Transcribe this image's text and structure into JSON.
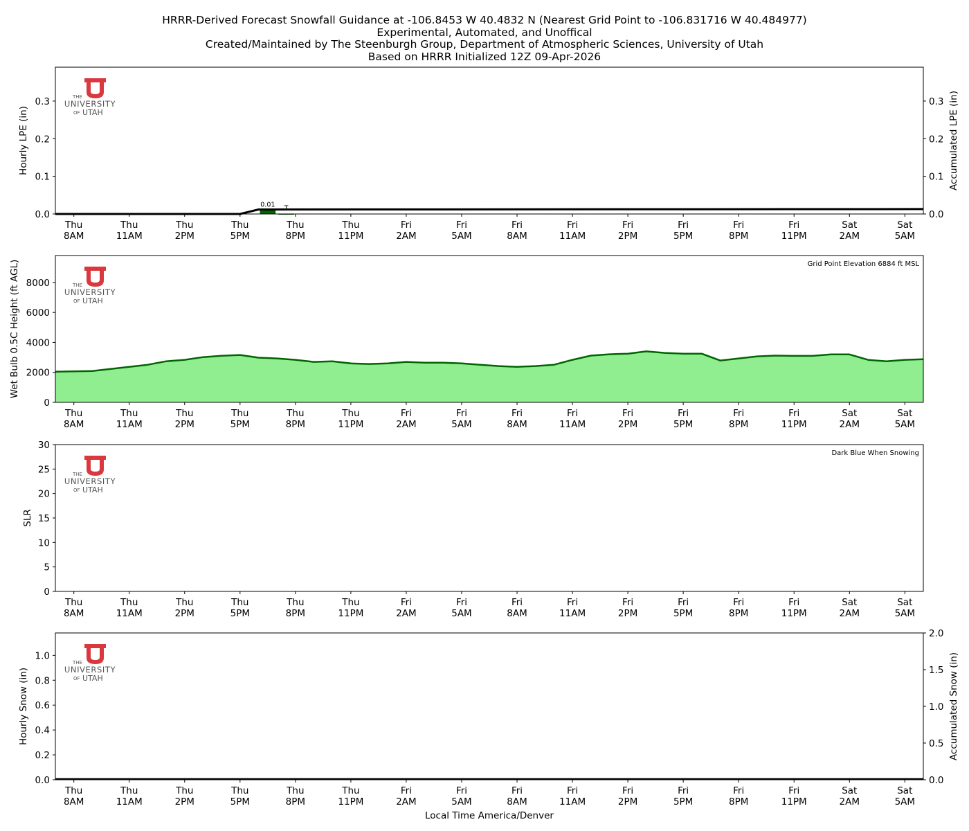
{
  "title": {
    "line1": "HRRR-Derived Forecast Snowfall Guidance at -106.8453 W 40.4832 N (Nearest Grid Point to -106.831716 W 40.484977)",
    "line2": "Experimental, Automated, and Unoffical",
    "line3": "Created/Maintained by The Steenburgh Group, Department of Atmospheric Sciences, University of Utah",
    "line4": "Based on HRRR Initialized 12Z 09-Apr-2026"
  },
  "logo": {
    "the": "THE",
    "university": "UNIVERSITY",
    "of": "OF",
    "utah": "UTAH",
    "color": "#d9383f"
  },
  "xaxis": {
    "label": "Local Time America/Denver",
    "ticks": [
      {
        "day": "Thu",
        "time": "8AM"
      },
      {
        "day": "Thu",
        "time": "11AM"
      },
      {
        "day": "Thu",
        "time": "2PM"
      },
      {
        "day": "Thu",
        "time": "5PM"
      },
      {
        "day": "Thu",
        "time": "8PM"
      },
      {
        "day": "Thu",
        "time": "11PM"
      },
      {
        "day": "Fri",
        "time": "2AM"
      },
      {
        "day": "Fri",
        "time": "5AM"
      },
      {
        "day": "Fri",
        "time": "8AM"
      },
      {
        "day": "Fri",
        "time": "11AM"
      },
      {
        "day": "Fri",
        "time": "2PM"
      },
      {
        "day": "Fri",
        "time": "5PM"
      },
      {
        "day": "Fri",
        "time": "8PM"
      },
      {
        "day": "Fri",
        "time": "11PM"
      },
      {
        "day": "Sat",
        "time": "2AM"
      },
      {
        "day": "Sat",
        "time": "5AM"
      }
    ]
  },
  "colors": {
    "lpe_bar": "#006400",
    "wetbulb_fill": "#90ee90",
    "wetbulb_line": "#006400",
    "axis": "#000000"
  },
  "chart_data": [
    {
      "type": "bar",
      "name": "lpe",
      "title": "",
      "ylabel": "Hourly LPE (in)",
      "y2label": "Accumulated LPE (in)",
      "ylim": [
        0,
        0.39
      ],
      "y2lim": [
        0,
        0.39
      ],
      "yticks": [
        "0.0",
        "0.1",
        "0.2",
        "0.3"
      ],
      "y2ticks": [
        "0.0",
        "0.1",
        "0.2",
        "0.3"
      ],
      "x_start_hour_offset": 0,
      "hours": 47,
      "start": "Thu 7AM",
      "hourly_lpe": [
        {
          "hour_index": 11,
          "label": "Thu 6PM-7PM",
          "value": 0.01,
          "annotation": "0.01"
        },
        {
          "hour_index": 12,
          "label": "Thu 7PM-8PM",
          "value": 0.001,
          "annotation": "T"
        }
      ],
      "accumulated_lpe": {
        "x_hours": [
          0,
          10,
          11,
          47
        ],
        "values": [
          0.0,
          0.0,
          0.012,
          0.013
        ]
      },
      "grid": false
    },
    {
      "type": "area",
      "name": "wetbulb",
      "ylabel": "Wet Bulb 0.5C Height (ft AGL)",
      "ylim": [
        0,
        9800
      ],
      "yticks": [
        "0",
        "2000",
        "4000",
        "6000",
        "8000"
      ],
      "annotation": "Grid Point Elevation 6884 ft MSL",
      "start": "Thu 7AM",
      "values": [
        2050,
        2070,
        2090,
        2230,
        2370,
        2510,
        2740,
        2840,
        3020,
        3110,
        3160,
        2980,
        2930,
        2840,
        2700,
        2740,
        2600,
        2560,
        2600,
        2700,
        2650,
        2650,
        2600,
        2510,
        2420,
        2370,
        2420,
        2510,
        2840,
        3120,
        3210,
        3250,
        3400,
        3300,
        3250,
        3250,
        2790,
        2930,
        3070,
        3120,
        3100,
        3100,
        3200,
        3200,
        2840,
        2740,
        2840,
        2880
      ],
      "grid": false
    },
    {
      "type": "bar",
      "name": "slr",
      "ylabel": "SLR",
      "ylim": [
        0,
        30
      ],
      "yticks": [
        "0",
        "5",
        "10",
        "15",
        "20",
        "25",
        "30"
      ],
      "annotation": "Dark Blue When Snowing",
      "values": [],
      "grid": false
    },
    {
      "type": "bar",
      "name": "snow",
      "ylabel": "Hourly Snow (in)",
      "y2label": "Accumulated Snow (in)",
      "ylim": [
        0,
        1.18
      ],
      "y2lim": [
        0,
        2.0
      ],
      "yticks": [
        "0.0",
        "0.2",
        "0.4",
        "0.6",
        "0.8",
        "1.0"
      ],
      "y2ticks": [
        "0.0",
        "0.5",
        "1.0",
        "1.5",
        "2.0"
      ],
      "hourly_snow": [],
      "accumulated_snow": {
        "values": [
          0.0,
          0.0
        ]
      },
      "grid": false
    }
  ]
}
